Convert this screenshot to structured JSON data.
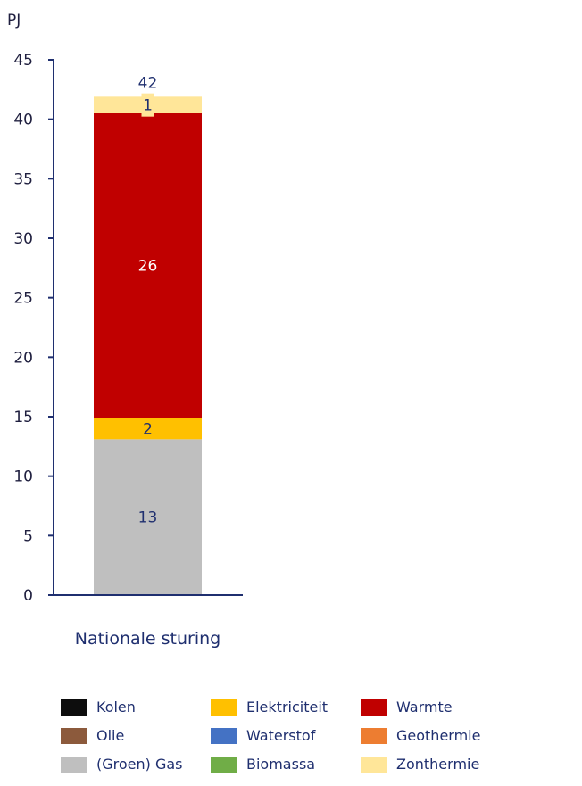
{
  "chart_data": {
    "type": "bar",
    "stacked": true,
    "unit_label": "PJ",
    "categories": [
      "Nationale sturing"
    ],
    "ylim": [
      0,
      45
    ],
    "yticks": [
      0,
      5,
      10,
      15,
      20,
      25,
      30,
      35,
      40,
      45
    ],
    "grid": false,
    "legend_position": "bottom",
    "total": {
      "value": 42,
      "label": "42"
    },
    "series": [
      {
        "name": "(Groen) Gas",
        "color": "#bfbfbf",
        "values": [
          13.1
        ],
        "label": "13"
      },
      {
        "name": "Elektriciteit",
        "color": "#ffc000",
        "values": [
          1.8
        ],
        "label": "2"
      },
      {
        "name": "Warmte",
        "color": "#c00000",
        "values": [
          25.6
        ],
        "label": "26"
      },
      {
        "name": "Zonthermie",
        "color": "#ffe699",
        "values": [
          1.4
        ],
        "label": "1"
      }
    ]
  },
  "legend": {
    "items": [
      {
        "name": "Kolen",
        "color": "#0d0d0d"
      },
      {
        "name": "Elektriciteit",
        "color": "#ffc000"
      },
      {
        "name": "Warmte",
        "color": "#c00000"
      },
      {
        "name": "Olie",
        "color": "#8c5a3c"
      },
      {
        "name": "Waterstof",
        "color": "#4472c4"
      },
      {
        "name": "Geothermie",
        "color": "#ed7d31"
      },
      {
        "name": "(Groen) Gas",
        "color": "#bfbfbf"
      },
      {
        "name": "Biomassa",
        "color": "#70ad47"
      },
      {
        "name": "Zonthermie",
        "color": "#ffe699"
      }
    ]
  },
  "colors": {
    "axis": "#1f2f6f",
    "label_dark": "#1f2f6f",
    "label_light": "#ffffff"
  }
}
